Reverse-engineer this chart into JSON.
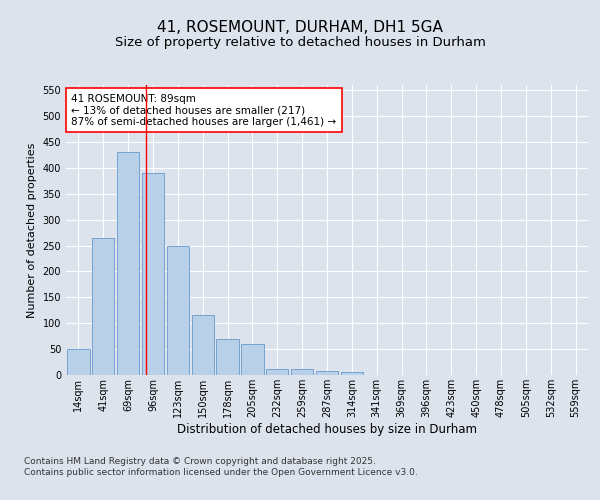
{
  "title": "41, ROSEMOUNT, DURHAM, DH1 5GA",
  "subtitle": "Size of property relative to detached houses in Durham",
  "xlabel": "Distribution of detached houses by size in Durham",
  "ylabel": "Number of detached properties",
  "categories": [
    "14sqm",
    "41sqm",
    "69sqm",
    "96sqm",
    "123sqm",
    "150sqm",
    "178sqm",
    "205sqm",
    "232sqm",
    "259sqm",
    "287sqm",
    "314sqm",
    "341sqm",
    "369sqm",
    "396sqm",
    "423sqm",
    "450sqm",
    "478sqm",
    "505sqm",
    "532sqm",
    "559sqm"
  ],
  "values": [
    50,
    265,
    430,
    390,
    250,
    115,
    70,
    60,
    12,
    12,
    8,
    6,
    0,
    0,
    0,
    0,
    0,
    0,
    0,
    0,
    0
  ],
  "bar_color": "#b8d0e8",
  "bar_edge_color": "#6699cc",
  "background_color": "#dce3ed",
  "plot_bg_color": "#dce3ed",
  "ylim": [
    0,
    560
  ],
  "yticks": [
    0,
    50,
    100,
    150,
    200,
    250,
    300,
    350,
    400,
    450,
    500,
    550
  ],
  "red_line_x": 2.72,
  "annotation_text": "41 ROSEMOUNT: 89sqm\n← 13% of detached houses are smaller (217)\n87% of semi-detached houses are larger (1,461) →",
  "annotation_box_color": "white",
  "annotation_border_color": "red",
  "footer_text": "Contains HM Land Registry data © Crown copyright and database right 2025.\nContains public sector information licensed under the Open Government Licence v3.0.",
  "title_fontsize": 11,
  "subtitle_fontsize": 9.5,
  "xlabel_fontsize": 8.5,
  "ylabel_fontsize": 8,
  "annotation_fontsize": 7.5,
  "footer_fontsize": 6.5,
  "tick_fontsize": 7
}
